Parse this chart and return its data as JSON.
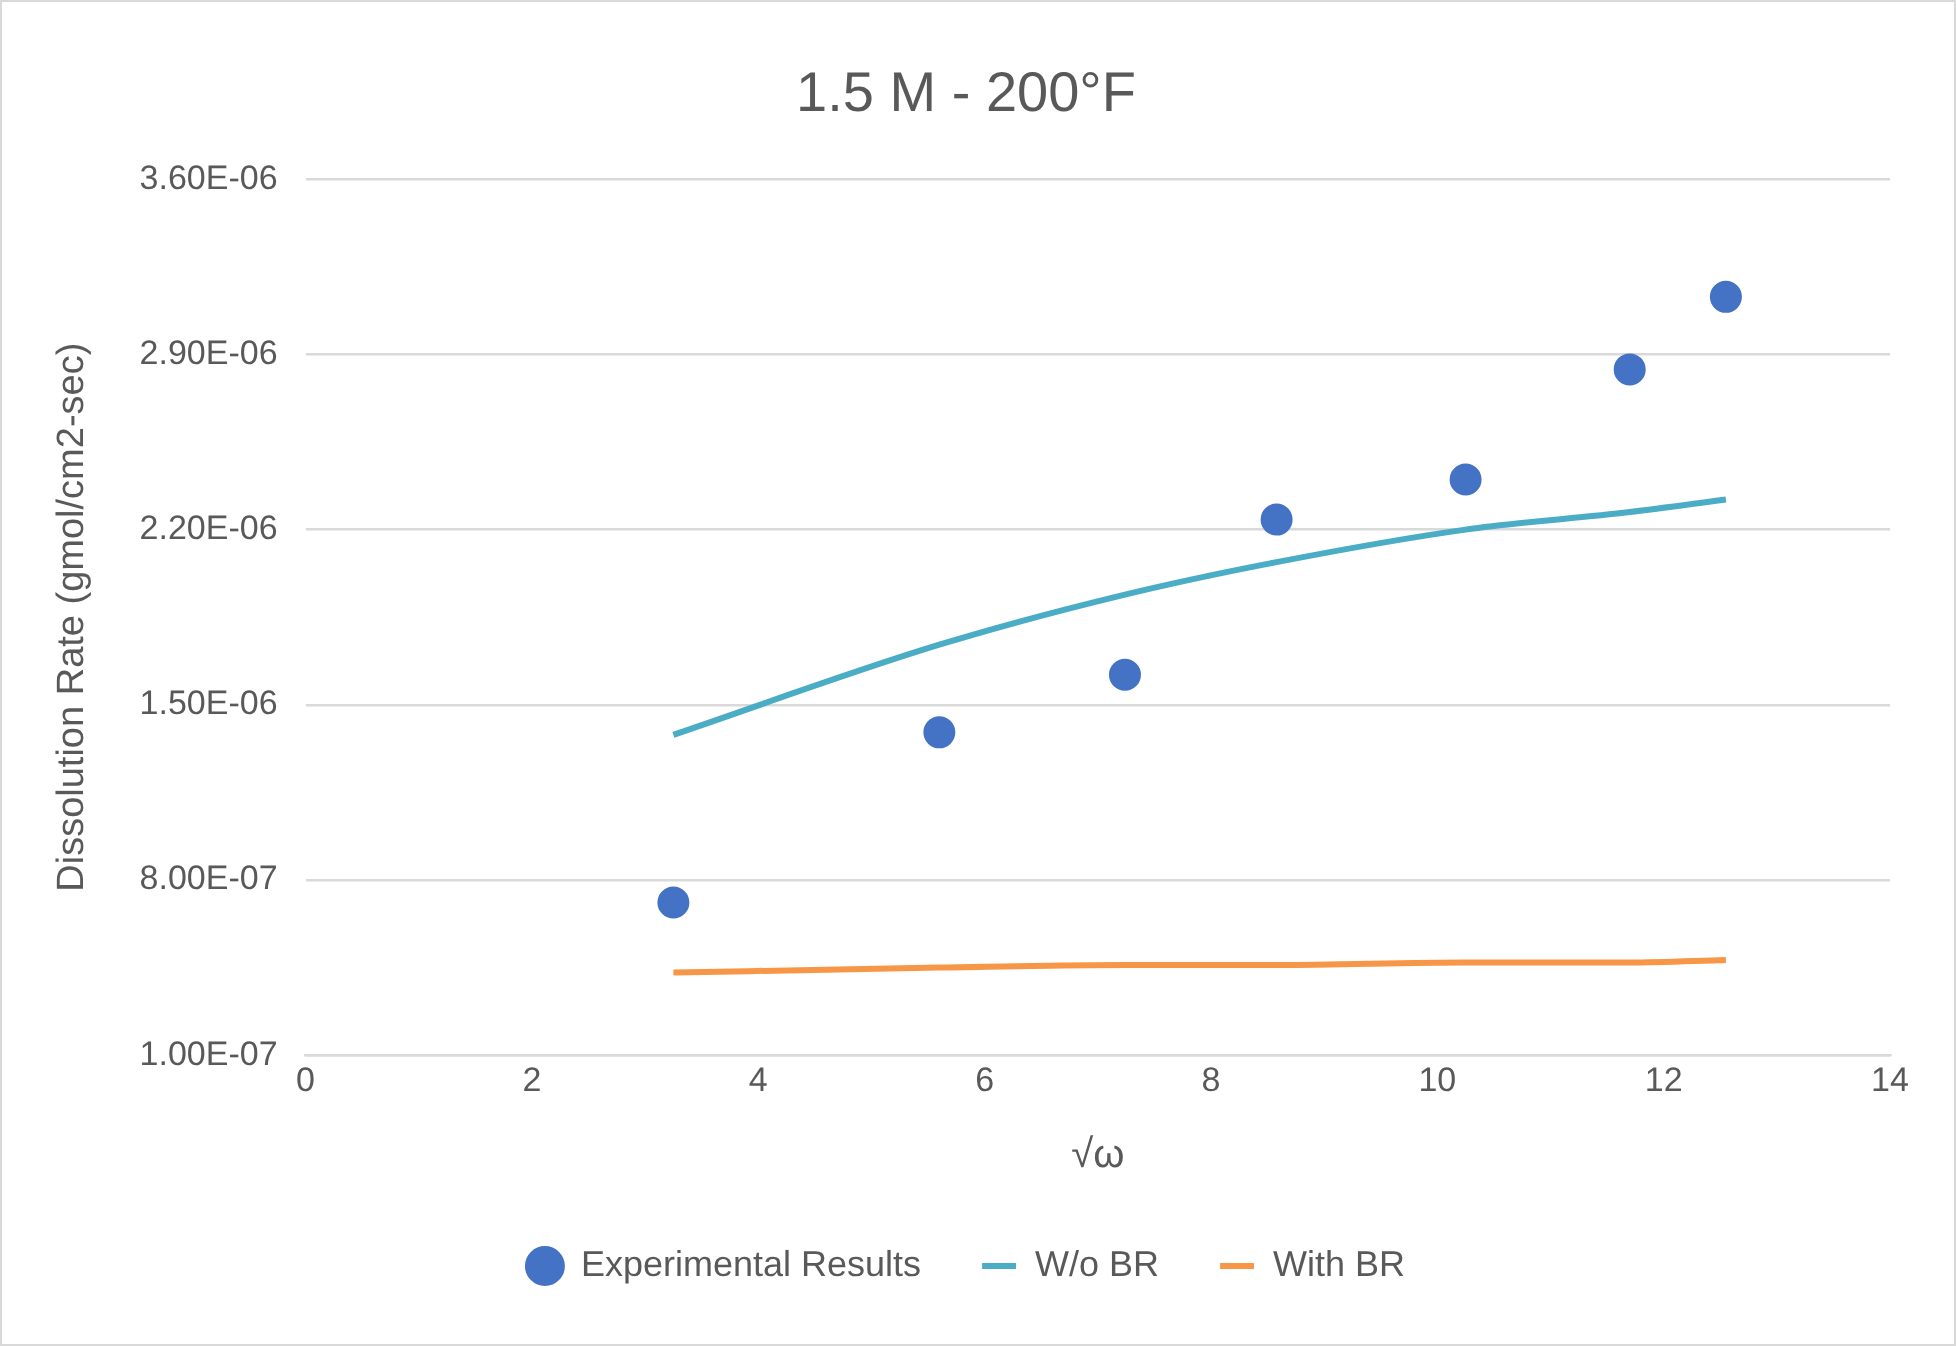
{
  "chart_data": {
    "type": "scatter",
    "title": "1.5 M - 200°F",
    "xlabel": "√ω",
    "ylabel": "Dissolution Rate (gmol/cm2-sec)",
    "x": [
      3.25,
      5.6,
      7.24,
      8.58,
      10.25,
      11.7,
      12.55
    ],
    "series": [
      {
        "name": "Experimental Results",
        "marker": "circle",
        "color": "#4472c4",
        "values": [
          7.1e-07,
          1.39e-06,
          1.62e-06,
          2.24e-06,
          2.4e-06,
          2.84e-06,
          3.13e-06
        ]
      },
      {
        "name": "W/o BR",
        "type": "line",
        "marker": "none",
        "color": "#4bacc6",
        "values": [
          1.38e-06,
          1.74e-06,
          1.94e-06,
          2.07e-06,
          2.2e-06,
          2.27e-06,
          2.32e-06
        ]
      },
      {
        "name": "With BR",
        "type": "line",
        "marker": "none",
        "color": "#f79646",
        "values": [
          4.3e-07,
          4.5e-07,
          4.6e-07,
          4.6e-07,
          4.7e-07,
          4.7e-07,
          4.8e-07
        ]
      }
    ],
    "xlim": [
      0,
      14
    ],
    "xticks": [
      0,
      2,
      4,
      6,
      8,
      10,
      12,
      14
    ],
    "ylim": [
      1e-07,
      3.6e-06
    ],
    "yticks": [
      {
        "value": 1e-07,
        "label": "1.00E-07"
      },
      {
        "value": 8e-07,
        "label": "8.00E-07"
      },
      {
        "value": 1.5e-06,
        "label": "1.50E-06"
      },
      {
        "value": 2.2e-06,
        "label": "2.20E-06"
      },
      {
        "value": 2.9e-06,
        "label": "2.90E-06"
      },
      {
        "value": 3.6e-06,
        "label": "3.60E-06"
      }
    ],
    "grid": "y",
    "legend": "bottom"
  }
}
